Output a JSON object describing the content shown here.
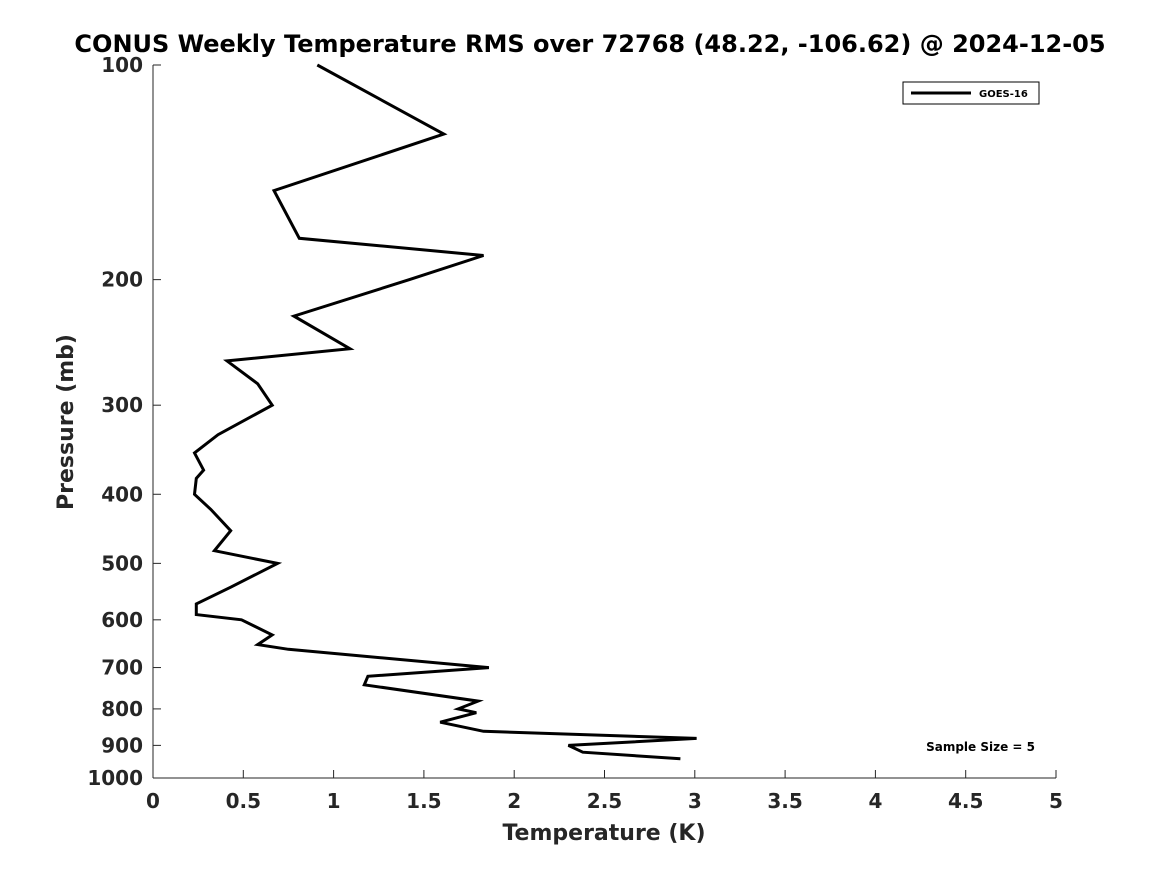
{
  "chart_data": {
    "type": "line",
    "title": "CONUS Weekly Temperature RMS over 72768 (48.22, -106.62) @ 2024-12-05",
    "xlabel": "Temperature (K)",
    "ylabel": "Pressure (mb)",
    "xlim": [
      0,
      5
    ],
    "ylim": [
      100,
      1000
    ],
    "yscale": "log",
    "y_reversed": true,
    "grid": false,
    "legend_position": "top-right",
    "x_ticks": [
      "0",
      "0.5",
      "1",
      "1.5",
      "2",
      "2.5",
      "3",
      "3.5",
      "4",
      "4.5",
      "5"
    ],
    "x_tick_values": [
      0,
      0.5,
      1,
      1.5,
      2,
      2.5,
      3,
      3.5,
      4,
      4.5,
      5
    ],
    "y_ticks": [
      "100",
      "200",
      "300",
      "400",
      "500",
      "600",
      "700",
      "800",
      "900",
      "1000"
    ],
    "y_tick_values": [
      100,
      200,
      300,
      400,
      500,
      600,
      700,
      800,
      900,
      1000
    ],
    "annotation": "Sample Size = 5",
    "series": [
      {
        "name": "GOES-16",
        "color": "#000000",
        "points": [
          {
            "x": 0.91,
            "p": 100
          },
          {
            "x": 1.61,
            "p": 125
          },
          {
            "x": 0.67,
            "p": 150
          },
          {
            "x": 0.81,
            "p": 175
          },
          {
            "x": 1.83,
            "p": 185
          },
          {
            "x": 1.42,
            "p": 200
          },
          {
            "x": 0.78,
            "p": 225
          },
          {
            "x": 1.09,
            "p": 250
          },
          {
            "x": 0.41,
            "p": 260
          },
          {
            "x": 0.58,
            "p": 280
          },
          {
            "x": 0.66,
            "p": 300
          },
          {
            "x": 0.36,
            "p": 330
          },
          {
            "x": 0.23,
            "p": 350
          },
          {
            "x": 0.28,
            "p": 370
          },
          {
            "x": 0.24,
            "p": 380
          },
          {
            "x": 0.23,
            "p": 400
          },
          {
            "x": 0.32,
            "p": 420
          },
          {
            "x": 0.43,
            "p": 450
          },
          {
            "x": 0.34,
            "p": 480
          },
          {
            "x": 0.69,
            "p": 500
          },
          {
            "x": 0.43,
            "p": 540
          },
          {
            "x": 0.24,
            "p": 570
          },
          {
            "x": 0.24,
            "p": 590
          },
          {
            "x": 0.49,
            "p": 600
          },
          {
            "x": 0.66,
            "p": 630
          },
          {
            "x": 0.58,
            "p": 650
          },
          {
            "x": 0.75,
            "p": 660
          },
          {
            "x": 1.86,
            "p": 700
          },
          {
            "x": 1.19,
            "p": 720
          },
          {
            "x": 1.17,
            "p": 740
          },
          {
            "x": 1.8,
            "p": 780
          },
          {
            "x": 1.69,
            "p": 800
          },
          {
            "x": 1.79,
            "p": 810
          },
          {
            "x": 1.59,
            "p": 835
          },
          {
            "x": 1.83,
            "p": 860
          },
          {
            "x": 3.01,
            "p": 880
          },
          {
            "x": 2.3,
            "p": 900
          },
          {
            "x": 2.38,
            "p": 920
          },
          {
            "x": 2.92,
            "p": 940
          }
        ]
      }
    ]
  }
}
